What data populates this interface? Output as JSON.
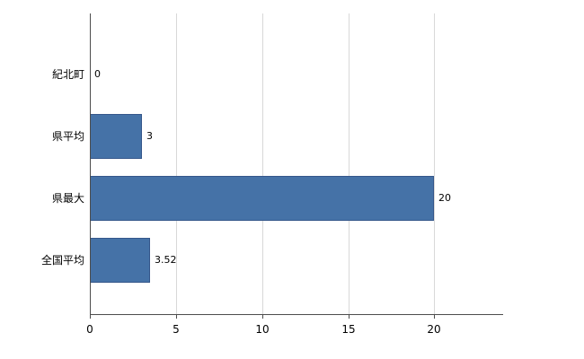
{
  "chart_data": {
    "type": "bar",
    "orientation": "horizontal",
    "title": "",
    "xlabel": "",
    "ylabel": "",
    "categories": [
      "紀北町",
      "県平均",
      "県最大",
      "全国平均"
    ],
    "values": [
      0,
      3,
      20,
      3.52
    ],
    "value_labels": [
      "0",
      "3",
      "20",
      "3.52"
    ],
    "x_ticks": [
      0,
      5,
      10,
      15,
      20
    ],
    "x_tick_labels": [
      "0",
      "5",
      "10",
      "15",
      "20"
    ],
    "xlim": [
      0,
      24
    ],
    "grid": true,
    "legend": "none",
    "bar_color": "#4572a7",
    "bar_border_color": "#35578b",
    "grid_color": "#d8d8d8",
    "axis_color": "#4d4d4d"
  }
}
